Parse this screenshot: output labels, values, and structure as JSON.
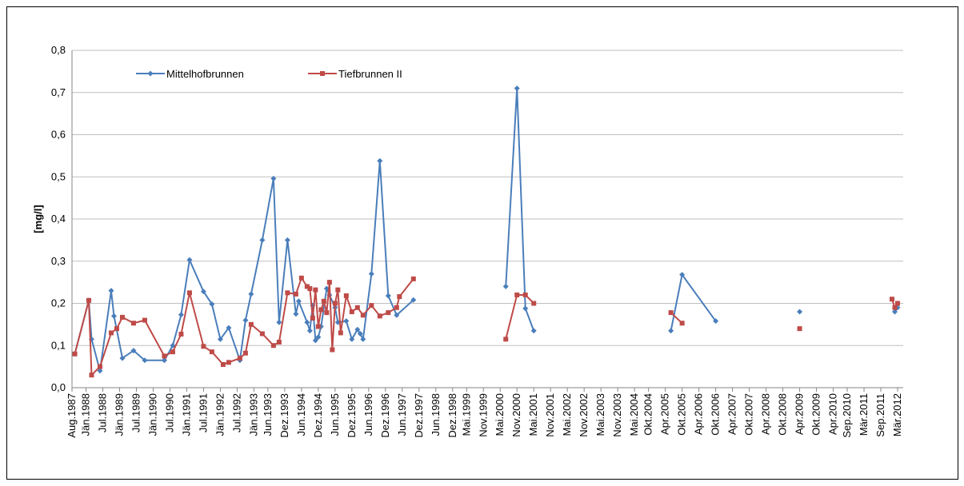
{
  "chart_data": {
    "type": "line",
    "y_label": "[mg/l]",
    "ylim": [
      0,
      0.8
    ],
    "yticks": [
      {
        "value": 0,
        "label": "0,0"
      },
      {
        "value": 0.1,
        "label": "0,1"
      },
      {
        "value": 0.2,
        "label": "0,2"
      },
      {
        "value": 0.3,
        "label": "0,3"
      },
      {
        "value": 0.4,
        "label": "0,4"
      },
      {
        "value": 0.5,
        "label": "0,5"
      },
      {
        "value": 0.6,
        "label": "0,6"
      },
      {
        "value": 0.7,
        "label": "0,7"
      },
      {
        "value": 0.8,
        "label": "0,8"
      }
    ],
    "xlim": [
      "1987-08",
      "2012-05"
    ],
    "xticks": [
      {
        "value": "1987-08",
        "label": "Aug.1987"
      },
      {
        "value": "1988-01",
        "label": "Jän.1988"
      },
      {
        "value": "1988-07",
        "label": "Jul.1988"
      },
      {
        "value": "1989-01",
        "label": "Jän.1989"
      },
      {
        "value": "1989-07",
        "label": "Jul.1989"
      },
      {
        "value": "1990-01",
        "label": "Jän.1990"
      },
      {
        "value": "1990-07",
        "label": "Jul.1990"
      },
      {
        "value": "1991-01",
        "label": "Jän.1991"
      },
      {
        "value": "1991-07",
        "label": "Jul.1991"
      },
      {
        "value": "1992-01",
        "label": "Jän.1992"
      },
      {
        "value": "1992-07",
        "label": "Jul.1992"
      },
      {
        "value": "1993-01",
        "label": "Jän.1993"
      },
      {
        "value": "1993-06",
        "label": "Jun.1993"
      },
      {
        "value": "1993-12",
        "label": "Dez.1993"
      },
      {
        "value": "1994-06",
        "label": "Jun.1994"
      },
      {
        "value": "1994-12",
        "label": "Dez.1994"
      },
      {
        "value": "1995-06",
        "label": "Jun.1995"
      },
      {
        "value": "1995-12",
        "label": "Dez.1995"
      },
      {
        "value": "1996-06",
        "label": "Jun.1996"
      },
      {
        "value": "1996-12",
        "label": "Dez.1996"
      },
      {
        "value": "1997-06",
        "label": "Jun.1997"
      },
      {
        "value": "1997-12",
        "label": "Dez.1997"
      },
      {
        "value": "1998-06",
        "label": "Jun.1998"
      },
      {
        "value": "1998-12",
        "label": "Dez.1998"
      },
      {
        "value": "1999-05",
        "label": "Mai.1999"
      },
      {
        "value": "1999-11",
        "label": "Nov.1999"
      },
      {
        "value": "2000-05",
        "label": "Mai.2000"
      },
      {
        "value": "2000-11",
        "label": "Nov.2000"
      },
      {
        "value": "2001-05",
        "label": "Mai.2001"
      },
      {
        "value": "2001-11",
        "label": "Nov.2001"
      },
      {
        "value": "2002-05",
        "label": "Mai.2002"
      },
      {
        "value": "2002-11",
        "label": "Nov.2002"
      },
      {
        "value": "2003-05",
        "label": "Mai.2003"
      },
      {
        "value": "2003-11",
        "label": "Nov.2003"
      },
      {
        "value": "2004-05",
        "label": "Mai.2004"
      },
      {
        "value": "2004-10",
        "label": "Okt.2004"
      },
      {
        "value": "2005-04",
        "label": "Apr.2005"
      },
      {
        "value": "2005-10",
        "label": "Okt.2005"
      },
      {
        "value": "2006-04",
        "label": "Apr.2006"
      },
      {
        "value": "2006-10",
        "label": "Okt.2006"
      },
      {
        "value": "2007-04",
        "label": "Apr.2007"
      },
      {
        "value": "2007-10",
        "label": "Okt.2007"
      },
      {
        "value": "2008-04",
        "label": "Apr.2008"
      },
      {
        "value": "2008-10",
        "label": "Okt.2008"
      },
      {
        "value": "2009-04",
        "label": "Apr.2009"
      },
      {
        "value": "2009-10",
        "label": "Okt.2009"
      },
      {
        "value": "2010-04",
        "label": "Apr.2010"
      },
      {
        "value": "2010-09",
        "label": "Sep.2010"
      },
      {
        "value": "2011-03",
        "label": "Mär.2011"
      },
      {
        "value": "2011-09",
        "label": "Sep.2011"
      },
      {
        "value": "2012-03",
        "label": "Mär.2012"
      }
    ],
    "grid": true,
    "legend": "upper left",
    "series": [
      {
        "name": "Mittelhofbrunnen",
        "color": "#4a7ebb",
        "marker": "diamond",
        "x": [
          "1987-09",
          "1988-02",
          "1988-03",
          "1988-06",
          "1988-10",
          "1988-11",
          "1989-02",
          "1989-06",
          "1989-10",
          "1990-05",
          "1990-08",
          "1990-11",
          "1991-02",
          "1991-07",
          "1991-10",
          "1992-01",
          "1992-04",
          "1992-08",
          "1992-10",
          "1992-12",
          "1993-04",
          "1993-08",
          "1993-10",
          "1994-01",
          "1994-04",
          "1994-05",
          "1994-08",
          "1994-09",
          "1994-10",
          "1994-11",
          "1994-12",
          "1995-01",
          "1995-03",
          "1995-04",
          "1995-06",
          "1995-07",
          "1995-10",
          "1995-12",
          "1996-02",
          "1996-03",
          "1996-04",
          "1996-07",
          "1996-10",
          "1997-01",
          "1997-04",
          "1997-10",
          null,
          "2000-07",
          "2000-11",
          "2001-02",
          "2001-05",
          null,
          "2005-06",
          "2005-10",
          "2006-10",
          null,
          "2009-04",
          null,
          "2012-02",
          "2012-03"
        ],
        "values": [
          0.08,
          0.207,
          0.115,
          0.04,
          0.23,
          0.17,
          0.07,
          0.088,
          0.065,
          0.065,
          0.1,
          0.173,
          0.303,
          0.228,
          0.198,
          0.115,
          0.142,
          0.065,
          0.16,
          0.222,
          0.35,
          0.496,
          0.155,
          0.35,
          0.175,
          0.205,
          0.155,
          0.135,
          0.195,
          0.112,
          0.12,
          0.145,
          0.235,
          0.22,
          0.19,
          0.155,
          0.158,
          0.115,
          0.138,
          0.128,
          0.115,
          0.27,
          0.538,
          0.218,
          0.172,
          0.208,
          null,
          0.24,
          0.71,
          0.188,
          0.135,
          null,
          0.135,
          0.268,
          0.158,
          null,
          0.18,
          null,
          0.18,
          0.19
        ]
      },
      {
        "name": "Tiefbrunnen II",
        "color": "#be4b48",
        "marker": "square",
        "x": [
          "1987-09",
          "1988-02",
          "1988-03",
          "1988-06",
          "1988-10",
          "1988-12",
          "1989-02",
          "1989-06",
          "1989-10",
          "1990-05",
          "1990-08",
          "1990-11",
          "1991-02",
          "1991-07",
          "1991-10",
          "1992-02",
          "1992-04",
          "1992-08",
          "1992-10",
          "1992-12",
          "1993-04",
          "1993-08",
          "1993-10",
          "1994-01",
          "1994-04",
          "1994-06",
          "1994-08",
          "1994-09",
          "1994-10",
          "1994-11",
          "1994-12",
          "1995-01",
          "1995-02",
          "1995-03",
          "1995-04",
          "1995-05",
          "1995-06",
          "1995-07",
          "1995-08",
          "1995-10",
          "1995-12",
          "1996-02",
          "1996-04",
          "1996-07",
          "1996-10",
          "1997-01",
          "1997-04",
          "1997-05",
          "1997-10",
          null,
          "2000-07",
          "2000-11",
          "2001-02",
          "2001-05",
          null,
          "2005-06",
          "2005-10",
          null,
          "2009-04",
          null,
          "2012-01",
          "2012-02",
          "2012-03"
        ],
        "values": [
          0.08,
          0.207,
          0.03,
          0.05,
          0.13,
          0.14,
          0.167,
          0.153,
          0.16,
          0.075,
          0.085,
          0.127,
          0.225,
          0.098,
          0.085,
          0.055,
          0.06,
          0.07,
          0.082,
          0.15,
          0.128,
          0.1,
          0.108,
          0.225,
          0.222,
          0.26,
          0.24,
          0.235,
          0.165,
          0.232,
          0.145,
          0.185,
          0.205,
          0.178,
          0.25,
          0.09,
          0.2,
          0.232,
          0.13,
          0.218,
          0.18,
          0.19,
          0.172,
          0.195,
          0.17,
          0.178,
          0.19,
          0.216,
          0.258,
          null,
          0.115,
          0.22,
          0.22,
          0.2,
          null,
          0.178,
          0.153,
          null,
          0.14,
          null,
          0.21,
          0.19,
          0.2
        ]
      }
    ]
  }
}
